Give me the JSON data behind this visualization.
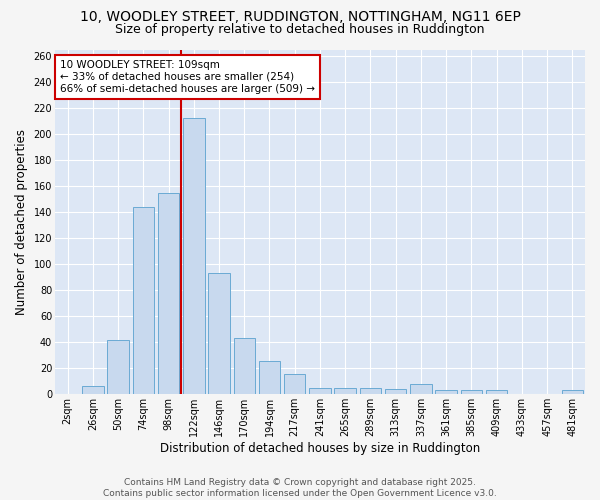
{
  "title_line1": "10, WOODLEY STREET, RUDDINGTON, NOTTINGHAM, NG11 6EP",
  "title_line2": "Size of property relative to detached houses in Ruddington",
  "xlabel": "Distribution of detached houses by size in Ruddington",
  "ylabel": "Number of detached properties",
  "bar_labels": [
    "2sqm",
    "26sqm",
    "50sqm",
    "74sqm",
    "98sqm",
    "122sqm",
    "146sqm",
    "170sqm",
    "194sqm",
    "217sqm",
    "241sqm",
    "265sqm",
    "289sqm",
    "313sqm",
    "337sqm",
    "361sqm",
    "385sqm",
    "409sqm",
    "433sqm",
    "457sqm",
    "481sqm"
  ],
  "bar_values": [
    0,
    6,
    42,
    144,
    155,
    213,
    93,
    43,
    26,
    16,
    5,
    5,
    5,
    4,
    8,
    3,
    3,
    3,
    0,
    0,
    3
  ],
  "bar_color": "#c8d9ee",
  "bar_edge_color": "#6aaad4",
  "vline_x": 4.5,
  "vline_color": "#cc0000",
  "annotation_text": "10 WOODLEY STREET: 109sqm\n← 33% of detached houses are smaller (254)\n66% of semi-detached houses are larger (509) →",
  "annotation_box_color": "#ffffff",
  "annotation_box_edge": "#cc0000",
  "ylim": [
    0,
    265
  ],
  "yticks": [
    0,
    20,
    40,
    60,
    80,
    100,
    120,
    140,
    160,
    180,
    200,
    220,
    240,
    260
  ],
  "plot_bg_color": "#dde7f5",
  "fig_bg_color": "#f5f5f5",
  "footer_text": "Contains HM Land Registry data © Crown copyright and database right 2025.\nContains public sector information licensed under the Open Government Licence v3.0.",
  "title_fontsize": 10,
  "subtitle_fontsize": 9,
  "axis_label_fontsize": 8.5,
  "tick_fontsize": 7,
  "annotation_fontsize": 7.5,
  "footer_fontsize": 6.5
}
